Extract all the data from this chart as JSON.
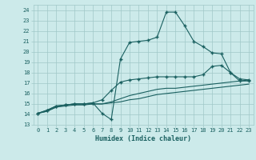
{
  "xlabel": "Humidex (Indice chaleur)",
  "background_color": "#cceaea",
  "line_color": "#1a6060",
  "grid_color": "#a0c8c8",
  "xlim": [
    -0.5,
    23.5
  ],
  "ylim": [
    13.0,
    24.5
  ],
  "yticks": [
    13,
    14,
    15,
    16,
    17,
    18,
    19,
    20,
    21,
    22,
    23,
    24
  ],
  "xticks": [
    0,
    1,
    2,
    3,
    4,
    5,
    6,
    7,
    8,
    9,
    10,
    11,
    12,
    13,
    14,
    15,
    16,
    17,
    18,
    19,
    20,
    21,
    22,
    23
  ],
  "lines": [
    {
      "x": [
        0,
        1,
        2,
        3,
        4,
        5,
        6,
        7,
        8,
        9,
        10,
        11,
        12,
        13,
        14,
        15,
        16,
        17,
        18,
        19,
        20,
        21,
        22,
        23
      ],
      "y": [
        14.1,
        14.4,
        14.8,
        14.9,
        15.0,
        15.0,
        15.1,
        14.1,
        13.5,
        19.3,
        20.9,
        21.0,
        21.1,
        21.4,
        23.8,
        23.8,
        22.5,
        21.0,
        20.5,
        19.9,
        19.8,
        18.0,
        17.2,
        17.2
      ],
      "marker": true
    },
    {
      "x": [
        0,
        1,
        2,
        3,
        4,
        5,
        6,
        7,
        8,
        9,
        10,
        11,
        12,
        13,
        14,
        15,
        16,
        17,
        18,
        19,
        20,
        21,
        22,
        23
      ],
      "y": [
        14.1,
        14.4,
        14.8,
        14.9,
        15.0,
        15.0,
        15.1,
        15.4,
        16.3,
        17.1,
        17.3,
        17.4,
        17.5,
        17.6,
        17.6,
        17.6,
        17.6,
        17.6,
        17.8,
        18.6,
        18.7,
        18.0,
        17.4,
        17.3
      ],
      "marker": true
    },
    {
      "x": [
        0,
        1,
        2,
        3,
        4,
        5,
        6,
        7,
        8,
        9,
        10,
        11,
        12,
        13,
        14,
        15,
        16,
        17,
        18,
        19,
        20,
        21,
        22,
        23
      ],
      "y": [
        14.1,
        14.3,
        14.7,
        14.9,
        15.0,
        15.0,
        15.0,
        15.0,
        15.2,
        15.5,
        15.8,
        16.0,
        16.2,
        16.4,
        16.5,
        16.5,
        16.6,
        16.7,
        16.8,
        16.9,
        17.0,
        17.1,
        17.2,
        17.3
      ],
      "marker": false
    },
    {
      "x": [
        0,
        1,
        2,
        3,
        4,
        5,
        6,
        7,
        8,
        9,
        10,
        11,
        12,
        13,
        14,
        15,
        16,
        17,
        18,
        19,
        20,
        21,
        22,
        23
      ],
      "y": [
        14.1,
        14.3,
        14.7,
        14.8,
        14.9,
        14.9,
        15.0,
        15.0,
        15.1,
        15.2,
        15.4,
        15.5,
        15.7,
        15.9,
        16.0,
        16.1,
        16.2,
        16.3,
        16.4,
        16.5,
        16.6,
        16.7,
        16.8,
        16.9
      ],
      "marker": false
    }
  ]
}
